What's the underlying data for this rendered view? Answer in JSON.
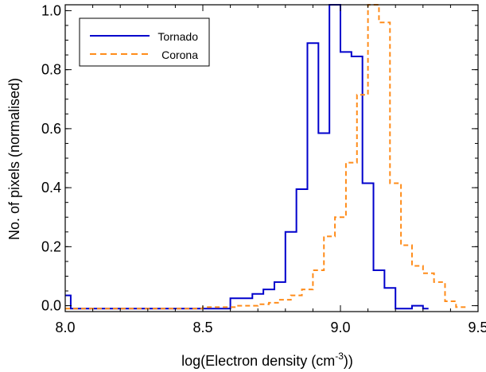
{
  "chart_data": {
    "type": "line",
    "step": true,
    "xlabel_prefix": "log(Electron density (cm",
    "xlabel_sup": "-3",
    "xlabel_suffix": "))",
    "ylabel": "No. of pixels (normalised)",
    "xlim": [
      8.0,
      9.5
    ],
    "ylim": [
      -0.02,
      1.02
    ],
    "xticks": [
      8.0,
      8.5,
      9.0,
      9.5
    ],
    "xtick_labels": [
      "8.0",
      "8.5",
      "9.0",
      "9.5"
    ],
    "yticks": [
      0.0,
      0.2,
      0.4,
      0.6,
      0.8,
      1.0
    ],
    "ytick_labels": [
      "0.0",
      "0.2",
      "0.4",
      "0.6",
      "0.8",
      "1.0"
    ],
    "legend_position": "top-left",
    "series": [
      {
        "name": "Tornado",
        "color": "#0000cc",
        "dash": "solid",
        "x": [
          8.0,
          8.02,
          8.04,
          8.06,
          8.08,
          8.1,
          8.12,
          8.14,
          8.16,
          8.18,
          8.2,
          8.22,
          8.24,
          8.26,
          8.28,
          8.3,
          8.32,
          8.34,
          8.36,
          8.38,
          8.4,
          8.42,
          8.44,
          8.46,
          8.48,
          8.5,
          8.52,
          8.54,
          8.56,
          8.58,
          8.6,
          8.62,
          8.64,
          8.66,
          8.68,
          8.7,
          8.72,
          8.74,
          8.76,
          8.78,
          8.8,
          8.82,
          8.84,
          8.86,
          8.88,
          8.9,
          8.92,
          8.94,
          8.96,
          8.98,
          9.0,
          9.02,
          9.04,
          9.06,
          9.08,
          9.1,
          9.12,
          9.14,
          9.16,
          9.18,
          9.2,
          9.22,
          9.24,
          9.26,
          9.28,
          9.3
        ],
        "y": [
          0.035,
          -0.01,
          -0.01,
          -0.01,
          -0.01,
          -0.01,
          -0.01,
          -0.01,
          -0.01,
          -0.01,
          -0.01,
          -0.01,
          -0.01,
          -0.01,
          -0.01,
          -0.01,
          -0.01,
          -0.01,
          -0.01,
          -0.01,
          -0.01,
          -0.01,
          -0.01,
          -0.01,
          -0.01,
          -0.01,
          -0.01,
          -0.01,
          -0.01,
          -0.01,
          0.025,
          0.025,
          0.025,
          0.025,
          0.04,
          0.04,
          0.055,
          0.055,
          0.08,
          0.08,
          0.25,
          0.25,
          0.395,
          0.395,
          0.89,
          0.89,
          0.585,
          0.585,
          1.02,
          1.02,
          0.86,
          0.86,
          0.845,
          0.845,
          0.415,
          0.415,
          0.12,
          0.12,
          0.06,
          0.06,
          -0.01,
          -0.01,
          -0.01,
          0.0,
          0.0,
          -0.01
        ]
      },
      {
        "name": "Corona",
        "color": "#ff8c1a",
        "dash": "dashed",
        "x": [
          8.0,
          8.02,
          8.04,
          8.06,
          8.08,
          8.1,
          8.12,
          8.14,
          8.16,
          8.18,
          8.2,
          8.22,
          8.24,
          8.26,
          8.28,
          8.3,
          8.32,
          8.34,
          8.36,
          8.38,
          8.4,
          8.42,
          8.44,
          8.46,
          8.48,
          8.5,
          8.52,
          8.54,
          8.56,
          8.58,
          8.6,
          8.62,
          8.64,
          8.66,
          8.68,
          8.7,
          8.72,
          8.74,
          8.76,
          8.78,
          8.8,
          8.82,
          8.84,
          8.86,
          8.88,
          8.9,
          8.92,
          8.94,
          8.96,
          8.98,
          9.0,
          9.02,
          9.04,
          9.06,
          9.08,
          9.1,
          9.12,
          9.14,
          9.16,
          9.18,
          9.2,
          9.22,
          9.24,
          9.26,
          9.28,
          9.3,
          9.32,
          9.34,
          9.36,
          9.38,
          9.4,
          9.42,
          9.44
        ],
        "y": [
          -0.01,
          -0.01,
          -0.01,
          -0.01,
          -0.01,
          -0.01,
          -0.01,
          -0.01,
          -0.01,
          -0.01,
          -0.01,
          -0.01,
          -0.01,
          -0.01,
          -0.01,
          -0.01,
          -0.01,
          -0.01,
          -0.01,
          -0.01,
          -0.01,
          -0.01,
          -0.01,
          -0.01,
          -0.01,
          -0.005,
          -0.005,
          -0.005,
          -0.005,
          -0.005,
          -0.005,
          0.0,
          0.0,
          0.0,
          0.0,
          0.005,
          0.005,
          0.01,
          0.01,
          0.02,
          0.02,
          0.035,
          0.035,
          0.055,
          0.055,
          0.12,
          0.12,
          0.235,
          0.235,
          0.3,
          0.3,
          0.485,
          0.485,
          0.715,
          0.715,
          1.02,
          1.02,
          0.96,
          0.96,
          0.415,
          0.415,
          0.205,
          0.205,
          0.135,
          0.135,
          0.11,
          0.11,
          0.08,
          0.08,
          0.015,
          0.015,
          -0.005,
          -0.005
        ]
      }
    ]
  }
}
